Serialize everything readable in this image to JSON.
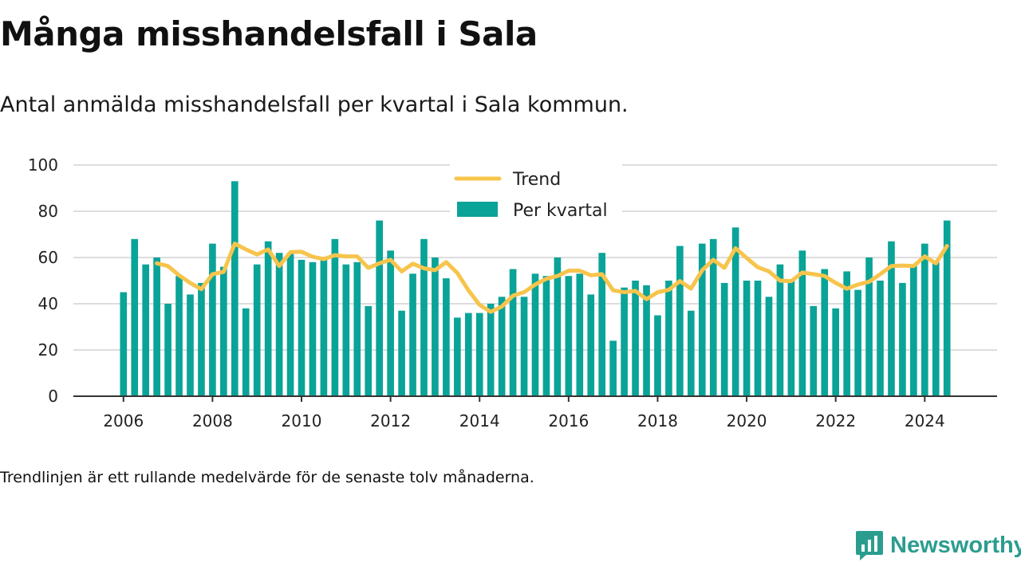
{
  "title": "Många misshandelsfall i Sala",
  "subtitle": "Antal anmälda misshandelsfall per kvartal i Sala kommun.",
  "footnote": "Trendlinjen är ett rullande medelvärde för de senaste tolv månaderna.",
  "brand": {
    "name": "Newsworthy",
    "icon": "newsworthy-logo-icon"
  },
  "colors": {
    "bar": "#0aa398",
    "trend": "#f7c44c",
    "grid": "#dddddd",
    "axis": "#333333"
  },
  "chart_data": {
    "type": "bar",
    "x_ticks": [
      "2006",
      "2008",
      "2010",
      "2012",
      "2014",
      "2016",
      "2018",
      "2020",
      "2022",
      "2024"
    ],
    "y_ticks": [
      "0",
      "20",
      "40",
      "60",
      "80",
      "100"
    ],
    "ylim": [
      0,
      100
    ],
    "xlim": [
      2004.875,
      2025.625
    ],
    "grid": true,
    "legend_position": "top-center",
    "series": [
      {
        "name": "Per kvartal",
        "type": "bar",
        "x": [
          2006.0,
          2006.25,
          2006.5,
          2006.75,
          2007.0,
          2007.25,
          2007.5,
          2007.75,
          2008.0,
          2008.25,
          2008.5,
          2008.75,
          2009.0,
          2009.25,
          2009.5,
          2009.75,
          2010.0,
          2010.25,
          2010.5,
          2010.75,
          2011.0,
          2011.25,
          2011.5,
          2011.75,
          2012.0,
          2012.25,
          2012.5,
          2012.75,
          2013.0,
          2013.25,
          2013.5,
          2013.75,
          2014.0,
          2014.25,
          2014.5,
          2014.75,
          2015.0,
          2015.25,
          2015.5,
          2015.75,
          2016.0,
          2016.25,
          2016.5,
          2016.75,
          2017.0,
          2017.25,
          2017.5,
          2017.75,
          2018.0,
          2018.25,
          2018.5,
          2018.75,
          2019.0,
          2019.25,
          2019.5,
          2019.75,
          2020.0,
          2020.25,
          2020.5,
          2020.75,
          2021.0,
          2021.25,
          2021.5,
          2021.75,
          2022.0,
          2022.25,
          2022.5,
          2022.75,
          2023.0,
          2023.25,
          2023.5,
          2023.75,
          2024.0,
          2024.25,
          2024.5
        ],
        "values": [
          45,
          68,
          57,
          60,
          40,
          52,
          44,
          49,
          66,
          56,
          93,
          38,
          57,
          67,
          62,
          62,
          59,
          58,
          59,
          68,
          57,
          58,
          39,
          76,
          63,
          37,
          53,
          68,
          60,
          51,
          34,
          36,
          36,
          40,
          43,
          55,
          43,
          53,
          52,
          60,
          52,
          53,
          44,
          62,
          24,
          47,
          50,
          48,
          35,
          50,
          65,
          37,
          66,
          68,
          49,
          73,
          50,
          50,
          43,
          57,
          50,
          63,
          39,
          55,
          38,
          54,
          46,
          60,
          50,
          67,
          49,
          57,
          66,
          58,
          76
        ]
      },
      {
        "name": "Trend",
        "type": "line",
        "x": [
          2006.75,
          2007.0,
          2007.25,
          2007.5,
          2007.75,
          2008.0,
          2008.25,
          2008.5,
          2008.75,
          2009.0,
          2009.25,
          2009.5,
          2009.75,
          2010.0,
          2010.25,
          2010.5,
          2010.75,
          2011.0,
          2011.25,
          2011.5,
          2011.75,
          2012.0,
          2012.25,
          2012.5,
          2012.75,
          2013.0,
          2013.25,
          2013.5,
          2013.75,
          2014.0,
          2014.25,
          2014.5,
          2014.75,
          2015.0,
          2015.25,
          2015.5,
          2015.75,
          2016.0,
          2016.25,
          2016.5,
          2016.75,
          2017.0,
          2017.25,
          2017.5,
          2017.75,
          2018.0,
          2018.25,
          2018.5,
          2018.75,
          2019.0,
          2019.25,
          2019.5,
          2019.75,
          2020.0,
          2020.25,
          2020.5,
          2020.75,
          2021.0,
          2021.25,
          2021.5,
          2021.75,
          2022.0,
          2022.25,
          2022.5,
          2022.75,
          2023.0,
          2023.25,
          2023.5,
          2023.75,
          2024.0,
          2024.25,
          2024.5
        ],
        "values": [
          57.5,
          56.3,
          52.3,
          49.0,
          46.3,
          52.8,
          53.8,
          66.0,
          63.5,
          61.3,
          63.5,
          56.3,
          62.3,
          62.5,
          60.3,
          59.3,
          61.0,
          60.5,
          60.5,
          55.5,
          57.5,
          59.0,
          54.0,
          57.3,
          55.3,
          54.5,
          58.0,
          53.3,
          45.8,
          39.5,
          36.5,
          38.8,
          43.5,
          45.0,
          48.3,
          50.8,
          52.0,
          54.3,
          54.3,
          52.3,
          52.8,
          45.8,
          45.0,
          45.5,
          42.0,
          45.0,
          46.0,
          49.8,
          46.5,
          54.5,
          59.0,
          55.5,
          64.0,
          59.8,
          55.8,
          54.0,
          50.0,
          49.8,
          53.5,
          52.8,
          52.0,
          49.0,
          46.5,
          48.3,
          49.5,
          52.8,
          56.3,
          56.5,
          56.3,
          60.5,
          57.5,
          65.0
        ]
      }
    ]
  }
}
